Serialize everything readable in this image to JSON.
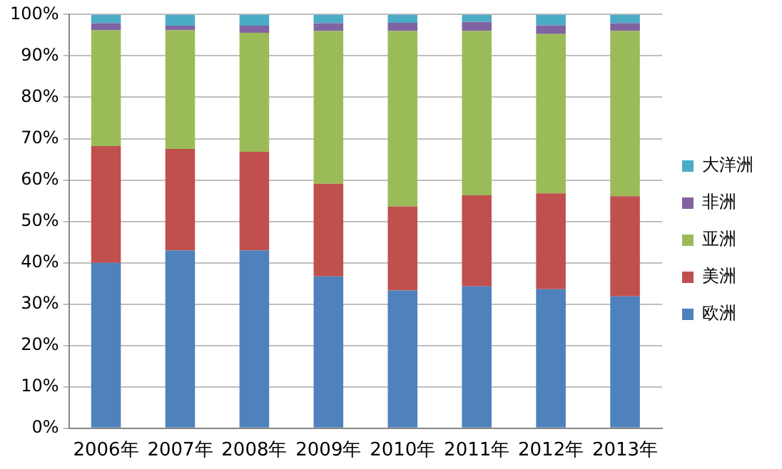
{
  "chart_data": {
    "type": "bar",
    "stacked": true,
    "categories": [
      "2006年",
      "2007年",
      "2008年",
      "2009年",
      "2010年",
      "2011年",
      "2012年",
      "2013年"
    ],
    "series": [
      {
        "name": "欧洲",
        "color": "#4f81bd",
        "values": [
          40,
          43,
          43,
          36.7,
          33.3,
          34.3,
          33.6,
          31.9
        ]
      },
      {
        "name": "美洲",
        "color": "#c0504d",
        "values": [
          28.2,
          24.5,
          23.8,
          22.4,
          20.3,
          22,
          23.2,
          24.2
        ]
      },
      {
        "name": "亚洲",
        "color": "#9bbb59",
        "values": [
          28,
          28.7,
          28.8,
          36.9,
          42.4,
          39.7,
          38.5,
          39.9
        ]
      },
      {
        "name": "非洲",
        "color": "#8064a2",
        "values": [
          1.7,
          1.1,
          1.7,
          1.9,
          2,
          2.2,
          2.1,
          1.9
        ]
      },
      {
        "name": "大洋洲",
        "color": "#4bacc6",
        "values": [
          2.1,
          2.7,
          2.7,
          2.1,
          2,
          1.8,
          2.6,
          2.1
        ]
      }
    ],
    "ylim": [
      0,
      100
    ],
    "yticks": [
      {
        "value": 0,
        "label": "0%"
      },
      {
        "value": 10,
        "label": "10%"
      },
      {
        "value": 20,
        "label": "20%"
      },
      {
        "value": 30,
        "label": "30%"
      },
      {
        "value": 40,
        "label": "40%"
      },
      {
        "value": 50,
        "label": "50%"
      },
      {
        "value": 60,
        "label": "60%"
      },
      {
        "value": 70,
        "label": "70%"
      },
      {
        "value": 80,
        "label": "80%"
      },
      {
        "value": 90,
        "label": "90%"
      },
      {
        "value": 100,
        "label": "100%"
      }
    ],
    "grid": "y",
    "legend": "right"
  }
}
